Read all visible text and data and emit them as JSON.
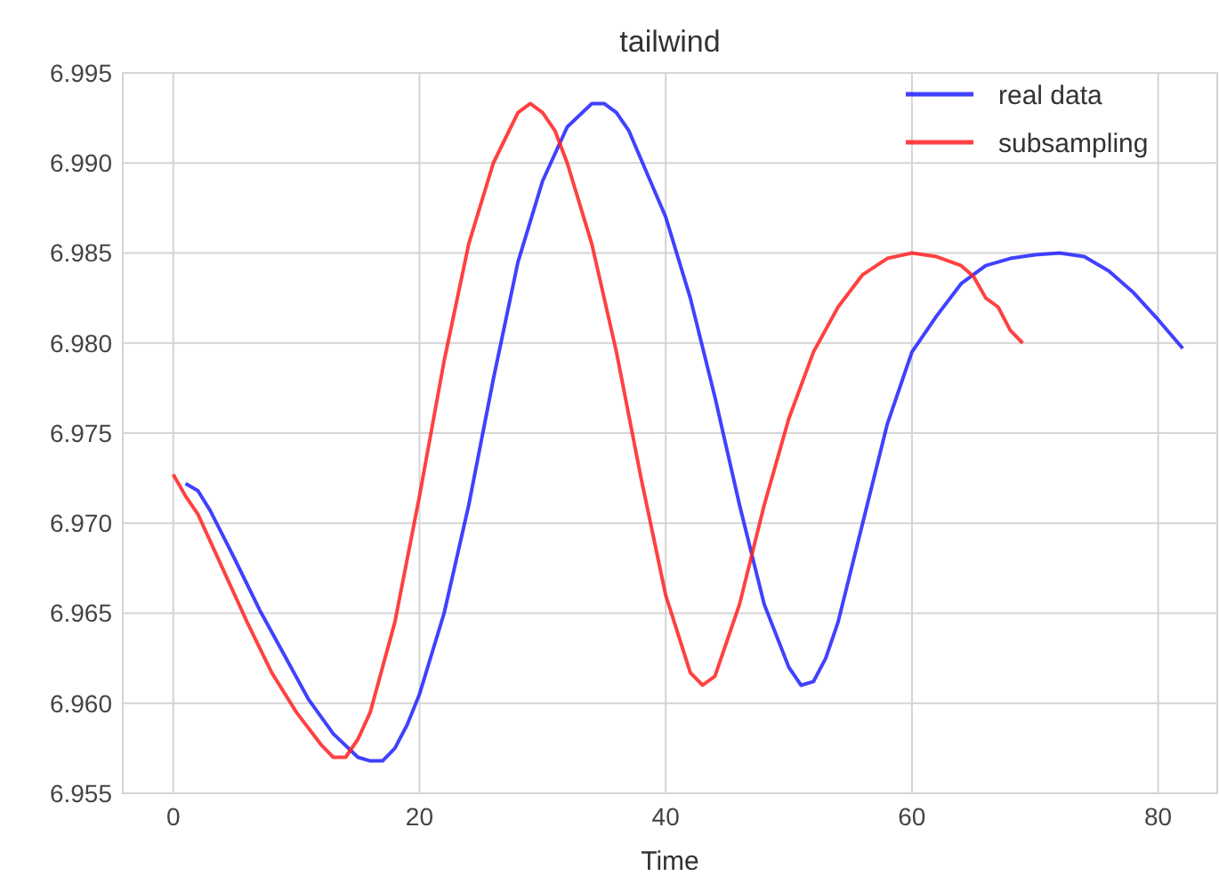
{
  "chart_data": {
    "type": "line",
    "title": "tailwind",
    "xlabel": "Time",
    "xlim": [
      -4.1,
      84.8
    ],
    "ylim": [
      6.955,
      6.995
    ],
    "xticks": [
      0,
      20,
      40,
      60,
      80
    ],
    "yticks": [
      6.955,
      {
        "value": 6.96,
        "label": "6.960"
      },
      6.965,
      {
        "value": 6.97,
        "label": "6.970"
      },
      6.975,
      {
        "value": 6.98,
        "label": "6.980"
      },
      6.985,
      {
        "value": 6.99,
        "label": "6.990"
      },
      6.995
    ],
    "grid": true,
    "legend": "top right",
    "line_style": "solid",
    "marker": "none",
    "series": [
      {
        "name": "real data",
        "color": "#2020ff",
        "x": [
          1,
          2,
          3,
          5,
          7,
          9,
          11,
          13,
          15,
          16,
          17,
          18,
          19,
          20,
          22,
          24,
          26,
          28,
          30,
          32,
          34,
          35,
          36,
          37,
          38,
          40,
          42,
          44,
          46,
          48,
          50,
          51,
          52,
          53,
          54,
          56,
          58,
          60,
          62,
          64,
          66,
          68,
          70,
          72,
          74,
          76,
          78,
          80,
          82
        ],
        "values": [
          6.9722,
          6.9718,
          6.9707,
          6.968,
          6.9652,
          6.9627,
          6.9602,
          6.9583,
          6.957,
          6.9568,
          6.9568,
          6.9575,
          6.9588,
          6.9605,
          6.965,
          6.971,
          6.978,
          6.9845,
          6.989,
          6.992,
          6.9933,
          6.9933,
          6.9928,
          6.9918,
          6.9902,
          6.987,
          6.9825,
          6.977,
          6.971,
          6.9655,
          6.962,
          6.961,
          6.9612,
          6.9625,
          6.9645,
          6.97,
          6.9755,
          6.9795,
          6.9815,
          6.9833,
          6.9843,
          6.9847,
          6.9849,
          6.985,
          6.9848,
          6.984,
          6.9828,
          6.9813,
          6.9797
        ]
      },
      {
        "name": "subsampling",
        "color": "#ff2020",
        "x": [
          0,
          1,
          2,
          4,
          6,
          8,
          10,
          12,
          13,
          14,
          15,
          16,
          18,
          20,
          22,
          24,
          26,
          28,
          29,
          30,
          31,
          32,
          34,
          36,
          38,
          40,
          42,
          43,
          44,
          46,
          48,
          50,
          52,
          54,
          56,
          58,
          60,
          62,
          64,
          65,
          66,
          67,
          68,
          69
        ],
        "values": [
          6.9727,
          6.9715,
          6.9705,
          6.9675,
          6.9645,
          6.9617,
          6.9595,
          6.9577,
          6.957,
          6.957,
          6.958,
          6.9595,
          6.9645,
          6.9715,
          6.979,
          6.9855,
          6.99,
          6.9928,
          6.9933,
          6.9928,
          6.9918,
          6.99,
          6.9855,
          6.9795,
          6.9725,
          6.966,
          6.9617,
          6.961,
          6.9615,
          6.9655,
          6.971,
          6.9758,
          6.9795,
          6.982,
          6.9838,
          6.9847,
          6.985,
          6.9848,
          6.9843,
          6.9837,
          6.9825,
          6.982,
          6.9807,
          6.98
        ]
      }
    ]
  }
}
